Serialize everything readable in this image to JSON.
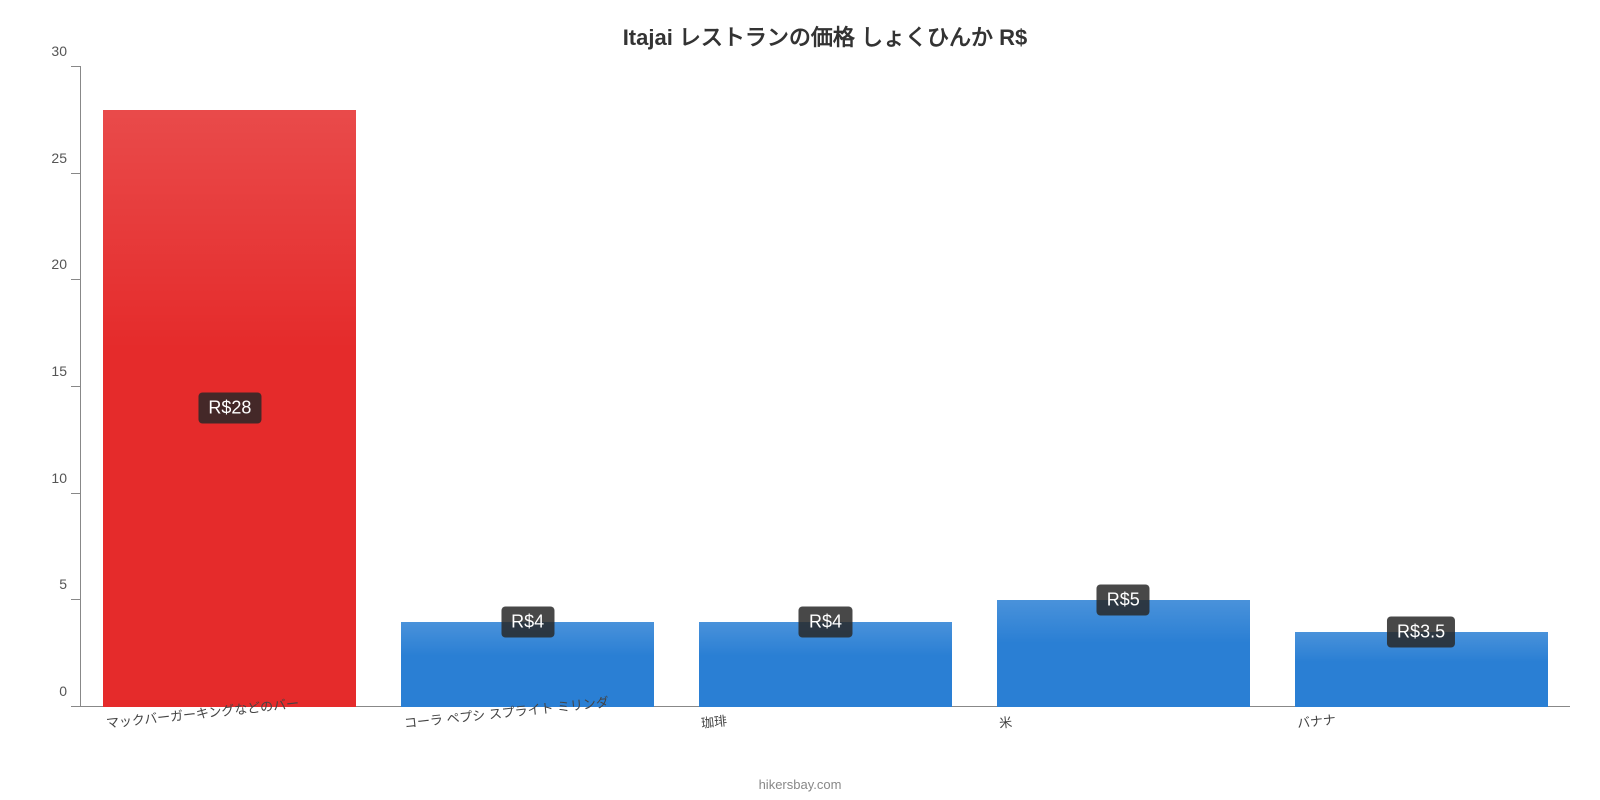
{
  "chart": {
    "type": "bar",
    "title": "Itajai レストランの価格 しょくひんか R$",
    "title_fontsize": 22,
    "background_color": "#ffffff",
    "axis_color": "#888888",
    "text_color": "#444444",
    "y": {
      "min": 0,
      "max": 30,
      "ticks": [
        0,
        5,
        10,
        15,
        20,
        25,
        30
      ],
      "label_fontsize": 14
    },
    "bars": [
      {
        "label": "マックバーガーキングなどのバー",
        "value": 28,
        "display": "R$28",
        "color": "#e52b2b",
        "highlight": true,
        "badge_pos": "mid"
      },
      {
        "label": "コーラ ペプシ スプライト ミリンダ",
        "value": 4,
        "display": "R$4",
        "color": "#2a7fd4",
        "highlight": false,
        "badge_pos": "top"
      },
      {
        "label": "珈琲",
        "value": 4,
        "display": "R$4",
        "color": "#2a7fd4",
        "highlight": false,
        "badge_pos": "top"
      },
      {
        "label": "米",
        "value": 5,
        "display": "R$5",
        "color": "#2a7fd4",
        "highlight": false,
        "badge_pos": "top"
      },
      {
        "label": "バナナ",
        "value": 3.5,
        "display": "R$3.5",
        "color": "#2a7fd4",
        "highlight": false,
        "badge_pos": "top"
      }
    ],
    "badge": {
      "bg": "rgba(40,40,40,0.85)",
      "text_color": "#ffffff",
      "fontsize": 18
    },
    "x_label_fontsize": 13,
    "x_label_rotate_deg": -6,
    "bar_width_ratio": 0.85
  },
  "footer": {
    "text": "hikersbay.com"
  }
}
